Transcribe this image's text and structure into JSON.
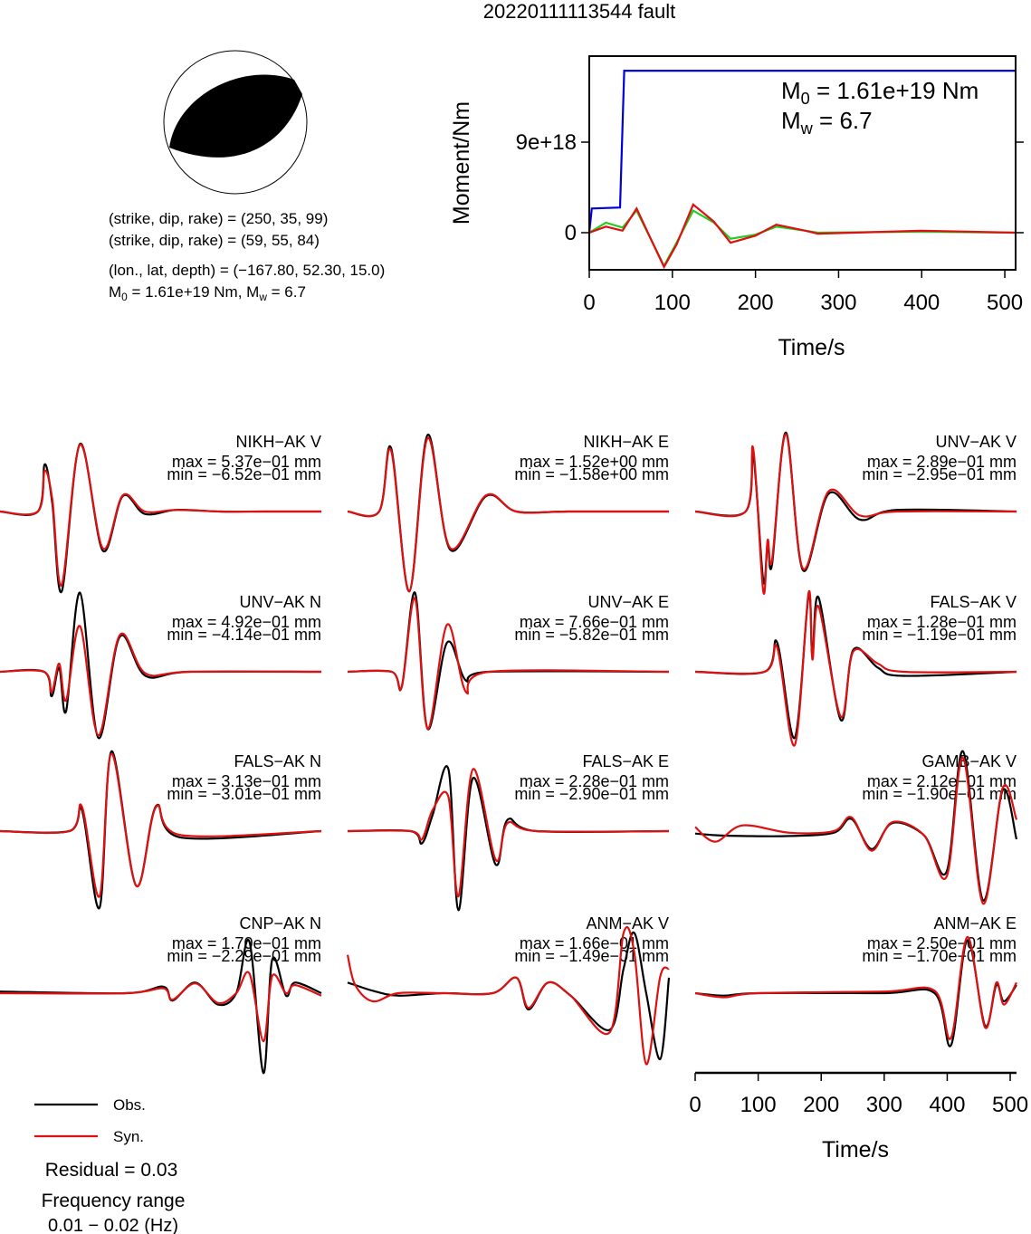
{
  "header": {
    "title": "20220111113544 fault"
  },
  "event": {
    "lines": [
      "(strike, dip, rake) = (250, 35, 99)",
      "(strike, dip, rake) = (59, 55, 84)",
      "(lon., lat, depth) = (−167.80, 52.30, 15.0)"
    ],
    "moment_parts": [
      "M",
      "0",
      " = 1.61e+19 Nm, M",
      "w",
      " = 6.7"
    ]
  },
  "chart_data": [
    {
      "type": "line",
      "ylabel": "Moment/Nm",
      "xlabel": "Time/s",
      "xlim": [
        0,
        513
      ],
      "ylim": [
        -3.69e+18,
        1.755e+19
      ],
      "xticks": [
        0,
        100,
        200,
        300,
        400,
        500
      ],
      "yticks": [
        0,
        {
          "value": 9e+18,
          "label": "9e+18"
        }
      ],
      "annotations": [
        [
          "M",
          "0",
          " = 1.61e+19 Nm"
        ],
        [
          "M",
          "w",
          " = 6.7"
        ]
      ],
      "series": [
        {
          "color": "#0000dd",
          "x": [
            0,
            3,
            37,
            42,
            513
          ],
          "values": [
            0,
            2.4e+18,
            2.5e+18,
            1.61e+19,
            1.61e+19
          ]
        },
        {
          "color": "#22cc22",
          "x": [
            0,
            20,
            40,
            57,
            75,
            90,
            105,
            125,
            150,
            170,
            200,
            225,
            260,
            275,
            400,
            513
          ],
          "values": [
            0,
            1e+18,
            5e+17,
            2.2e+18,
            -8e+17,
            -3.3e+18,
            -1e+18,
            2.2e+18,
            1e+18,
            -6e+17,
            -2e+17,
            6e+17,
            2e+17,
            0,
            1e+17,
            0
          ]
        },
        {
          "color": "#dd1111",
          "x": [
            0,
            20,
            40,
            57,
            75,
            90,
            105,
            125,
            150,
            170,
            200,
            225,
            260,
            275,
            400,
            513
          ],
          "values": [
            0,
            6e+17,
            2e+17,
            2.4e+18,
            -8e+17,
            -3.4e+18,
            -1.2e+18,
            2.8e+18,
            1.1e+18,
            -1e+18,
            -3e+17,
            8e+17,
            2e+17,
            -1e+17,
            2e+17,
            0
          ]
        }
      ]
    },
    {
      "type": "waveform",
      "xlabel": "Time/s",
      "xlim": [
        0,
        510
      ],
      "ylim": [
        -1,
        1
      ],
      "xticks": [
        0,
        100,
        200,
        300,
        400,
        500
      ],
      "series": [
        {
          "name": "Obs.",
          "color": "#000000"
        },
        {
          "name": "Syn.",
          "color": "#dd1111"
        }
      ],
      "panels": [
        {
          "title": "NIKH−AK V",
          "max": "max = 5.37e−01 mm",
          "min": "min = −6.52e−01 mm",
          "x": [
            0,
            60,
            71,
            83,
            98,
            127,
            163,
            195,
            230,
            280,
            350,
            420,
            510
          ],
          "values": [
            [
              0,
              0,
              0.58,
              0.1,
              -0.98,
              0.83,
              -0.48,
              0.19,
              -0.03,
              0.02,
              0,
              0,
              0
            ],
            [
              0,
              0,
              0.5,
              0.15,
              -0.9,
              0.82,
              -0.45,
              0.2,
              0,
              0.02,
              0,
              0,
              0
            ]
          ]
        },
        {
          "title": "NIKH−AK E",
          "max": "max = 1.52e+00 mm",
          "min": "min = −1.58e+00 mm",
          "x": [
            0,
            50,
            69,
            98,
            127,
            163,
            220,
            268,
            350,
            510
          ],
          "values": [
            [
              0,
              0,
              0.78,
              -0.98,
              0.94,
              -0.47,
              0.19,
              0,
              0,
              0
            ],
            [
              0,
              0,
              0.75,
              -0.98,
              0.9,
              -0.45,
              0.2,
              0,
              0,
              0
            ]
          ]
        },
        {
          "title": "UNV−AK V",
          "max": "max = 2.89e−01 mm",
          "min": "min = −2.95e−01 mm",
          "x": [
            0,
            80,
            92,
            108,
            115,
            122,
            144,
            171,
            212,
            262,
            320,
            510
          ],
          "values": [
            [
              0,
              0,
              0.7,
              -0.85,
              -0.4,
              -0.65,
              0.97,
              -0.72,
              0.22,
              -0.1,
              0.02,
              0
            ],
            [
              0,
              0,
              0.78,
              -0.98,
              -0.35,
              -0.6,
              0.95,
              -0.7,
              0.25,
              -0.05,
              0,
              0
            ]
          ]
        },
        {
          "title": "UNV−AK N",
          "max": "max = 4.92e−01 mm",
          "min": "min = −4.14e−01 mm",
          "x": [
            0,
            70,
            82,
            94,
            105,
            127,
            156,
            190,
            231,
            300,
            510
          ],
          "values": [
            [
              0,
              0,
              -0.3,
              0.05,
              -0.48,
              0.97,
              -0.81,
              0.43,
              -0.05,
              0,
              0
            ],
            [
              0,
              0,
              -0.25,
              0.1,
              -0.35,
              0.56,
              -0.78,
              0.45,
              -0.02,
              0,
              0
            ]
          ]
        },
        {
          "title": "UNV−AK E",
          "max": "max = 7.66e−01 mm",
          "min": "min = −5.82e−01 mm",
          "x": [
            0,
            70,
            86,
            107,
            127,
            158,
            188,
            225,
            510
          ],
          "values": [
            [
              0,
              0,
              -0.18,
              0.97,
              -0.7,
              0.36,
              -0.11,
              0,
              0
            ],
            [
              0,
              0,
              -0.18,
              0.9,
              -0.7,
              0.58,
              -0.25,
              0,
              0
            ]
          ]
        },
        {
          "title": "FALS−AK V",
          "max": "max = 1.28e−01 mm",
          "min": "min = −1.19e−01 mm",
          "x": [
            0,
            110,
            130,
            158,
            180,
            186,
            196,
            231,
            251,
            290,
            330,
            510
          ],
          "values": [
            [
              0,
              0,
              0.36,
              -0.81,
              0.93,
              0.2,
              0.91,
              -0.59,
              0.27,
              0.05,
              -0.05,
              0
            ],
            [
              0,
              0,
              0.3,
              -0.9,
              0.97,
              0.15,
              0.8,
              -0.55,
              0.25,
              0.1,
              0,
              0
            ]
          ]
        },
        {
          "title": "FALS−AK N",
          "max": "max = 3.13e−01 mm",
          "min": "min = −3.01e−01 mm",
          "x": [
            0,
            110,
            130,
            158,
            177,
            216,
            248,
            288,
            510
          ],
          "values": [
            [
              0,
              0,
              0.26,
              -0.94,
              0.98,
              -0.67,
              0.31,
              -0.08,
              0
            ],
            [
              0,
              0,
              0.3,
              -0.8,
              0.95,
              -0.67,
              0.3,
              -0.05,
              0
            ]
          ]
        },
        {
          "title": "FALS−AK E",
          "max": "max = 2.28e−01 mm",
          "min": "min = −2.90e−01 mm",
          "x": [
            0,
            100,
            118,
            135,
            160,
            176,
            199,
            235,
            254,
            300,
            510
          ],
          "values": [
            [
              0,
              0,
              -0.15,
              0.2,
              0.76,
              -0.97,
              0.65,
              -0.41,
              0.14,
              0,
              0
            ],
            [
              0,
              0,
              -0.1,
              0.26,
              0.42,
              -0.8,
              0.76,
              -0.35,
              0.1,
              0,
              0
            ]
          ]
        },
        {
          "title": "GAMB−AK V",
          "max": "max = 2.12e−01 mm",
          "min": "min = −1.90e−01 mm",
          "x": [
            0,
            32,
            75,
            150,
            220,
            248,
            280,
            313,
            363,
            399,
            425,
            457,
            488,
            510
          ],
          "values": [
            [
              -0.03,
              -0.05,
              -0.06,
              -0.06,
              -0.02,
              0.15,
              -0.22,
              0.1,
              -0.05,
              -0.5,
              0.98,
              -0.85,
              0.5,
              -0.1
            ],
            [
              0.05,
              -0.13,
              0.07,
              -0.02,
              0,
              0.17,
              -0.24,
              0.11,
              -0.05,
              -0.56,
              0.9,
              -0.89,
              0.53,
              0.14
            ]
          ]
        },
        {
          "title": "CNP−AK N",
          "max": "max = 1.70e−01 mm",
          "min": "min = −2.29e−01 mm",
          "x": [
            0,
            200,
            259,
            274,
            310,
            346,
            375,
            396,
            418,
            432,
            454,
            468,
            510
          ],
          "values": [
            [
              0.02,
              0,
              0.08,
              -0.09,
              0.13,
              -0.14,
              0,
              0.63,
              -0.98,
              0.41,
              -0.03,
              0.13,
              0
            ],
            [
              0,
              0,
              0.06,
              -0.08,
              0.12,
              -0.12,
              0,
              0.24,
              -0.59,
              0.21,
              0,
              0.1,
              -0.03
            ]
          ]
        },
        {
          "title": "ANM−AK V",
          "max": "max = 1.66e−01 mm",
          "min": "min = −1.49e−01 mm",
          "x": [
            0,
            12,
            40,
            80,
            150,
            230,
            268,
            287,
            318,
            354,
            416,
            438,
            455,
            474,
            496,
            510
          ],
          "values": [
            [
              0.13,
              0.1,
              0.03,
              -0.03,
              0,
              0,
              0.19,
              -0.2,
              0.13,
              -0.03,
              -0.45,
              0.3,
              0.74,
              0,
              -0.81,
              0.19
            ],
            [
              0.47,
              0.1,
              -0.1,
              0,
              0,
              0,
              0.19,
              -0.18,
              0.13,
              -0.03,
              -0.48,
              0.74,
              0.5,
              -0.87,
              0.2,
              0.3
            ]
          ]
        },
        {
          "title": "ANM−AK E",
          "max": "max = 2.50e−01 mm",
          "min": "min = −1.70e−01 mm",
          "x": [
            0,
            46,
            100,
            300,
            380,
            406,
            432,
            460,
            478,
            490,
            510
          ],
          "values": [
            [
              0,
              -0.03,
              0,
              0,
              0,
              -0.64,
              0.65,
              -0.4,
              0.1,
              -0.1,
              0.1
            ],
            [
              0,
              -0.05,
              0,
              0.02,
              0.03,
              -0.55,
              0.69,
              -0.42,
              0.13,
              -0.14,
              0.13
            ]
          ]
        }
      ]
    }
  ],
  "notes": {
    "residual": "Residual = 0.03",
    "frequency_range": [
      "Frequency range",
      "0.01 − 0.02 (Hz)"
    ]
  }
}
